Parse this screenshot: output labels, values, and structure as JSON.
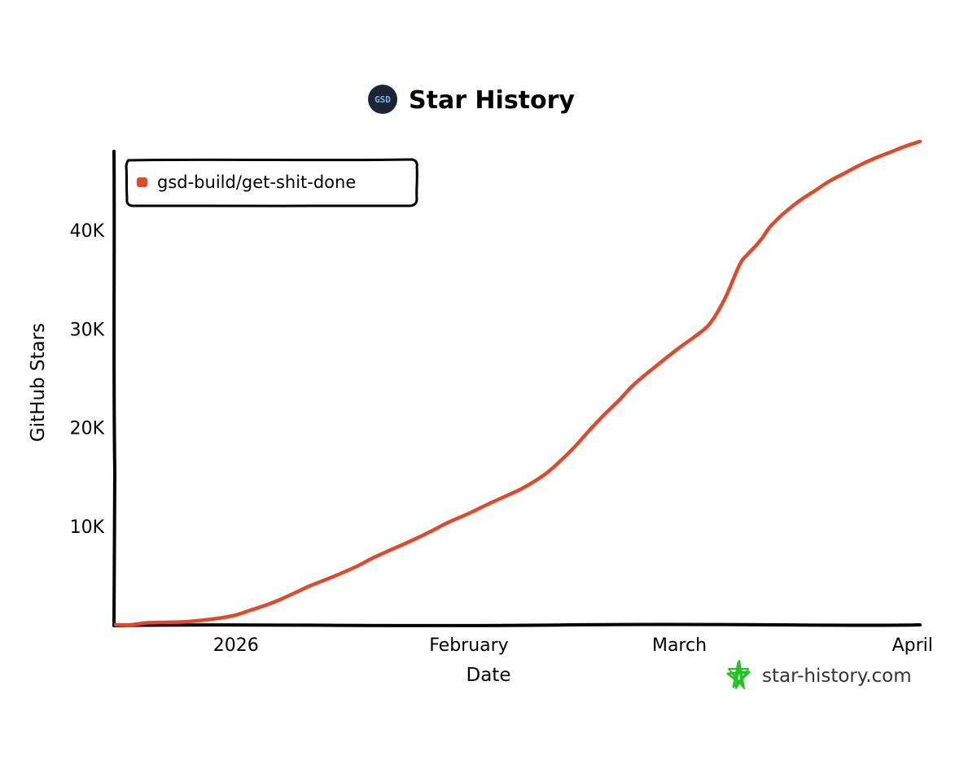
{
  "chart_data": {
    "type": "line",
    "title": "Star History",
    "logo_text": "GSD",
    "xlabel": "Date",
    "ylabel": "GitHub Stars",
    "x_ticks": [
      {
        "label": "2026",
        "day": 17
      },
      {
        "label": "February",
        "day": 48
      },
      {
        "label": "March",
        "day": 76
      },
      {
        "label": "April",
        "day": 107
      }
    ],
    "y_ticks": [
      {
        "label": "10K",
        "value": 10000
      },
      {
        "label": "20K",
        "value": 20000
      },
      {
        "label": "30K",
        "value": 30000
      },
      {
        "label": "40K",
        "value": 40000
      }
    ],
    "xlim": [
      1,
      108
    ],
    "ylim": [
      0,
      48000
    ],
    "series": [
      {
        "name": "gsd-build/get-shit-done",
        "color": "#dd4b2f",
        "x": [
          1,
          3,
          5,
          7,
          10,
          13,
          15,
          17,
          19,
          21,
          23,
          25,
          27,
          30,
          33,
          35,
          37,
          40,
          43,
          45,
          48,
          51,
          55,
          58,
          60,
          62,
          64,
          66,
          68,
          70,
          73,
          76,
          78,
          80,
          82,
          84,
          85,
          86,
          87,
          88,
          89,
          90,
          92,
          94,
          96,
          98,
          100,
          102,
          104,
          106,
          108
        ],
        "values": [
          0,
          0,
          200,
          250,
          300,
          500,
          700,
          1000,
          1500,
          2000,
          2600,
          3300,
          4000,
          4900,
          5900,
          6700,
          7400,
          8400,
          9500,
          10300,
          11300,
          12400,
          13800,
          15200,
          16500,
          18000,
          19700,
          21300,
          22800,
          24400,
          26300,
          28100,
          29200,
          30500,
          33000,
          36500,
          37500,
          38300,
          39200,
          40300,
          41100,
          41800,
          43000,
          44000,
          45000,
          45800,
          46600,
          47300,
          47900,
          48500,
          49000
        ]
      }
    ]
  },
  "watermark": {
    "text": "star-history.com",
    "icon": "star-history-logo-icon",
    "icon_color": "#22c422"
  },
  "legend_position": "top-left"
}
